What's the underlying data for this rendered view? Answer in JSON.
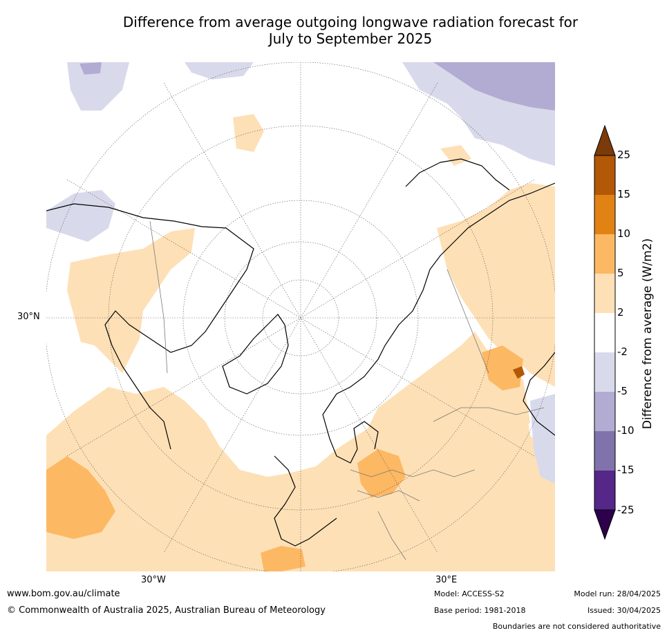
{
  "title": {
    "line1": "Difference from average outgoing longwave radiation forecast for",
    "line2": "July to September 2025"
  },
  "map": {
    "lon_labels": [
      "30°W",
      "30°E"
    ],
    "lat_labels": [
      "30°N"
    ]
  },
  "colorbar": {
    "label": "Difference from average (W/m2)",
    "ticks": [
      "25",
      "15",
      "10",
      "5",
      "2",
      "-2",
      "-5",
      "-10",
      "-15",
      "-25"
    ],
    "colors": {
      "extend_max": "#7b3a0a",
      "c15_25": "#b35806",
      "c10_15": "#e08214",
      "c5_10": "#fdb863",
      "c2_5": "#fee0b6",
      "c_neutral": "#ffffff",
      "c_m5_m2": "#d8daeb",
      "c_m10_m5": "#b2abd2",
      "c_m15_m10": "#8073ac",
      "c_m25_m15": "#542788",
      "extend_min": "#2d004b"
    }
  },
  "footer": {
    "website": "www.bom.gov.au/climate",
    "copyright": "© Commonwealth of Australia 2025, Australian Bureau of Meteorology",
    "model": "Model: ACCESS-S2",
    "base_period": "Base period: 1981-2018",
    "model_run": "Model run: 28/04/2025",
    "issued": "Issued: 30/04/2025",
    "disclaimer": "Boundaries are not considered authoritative"
  }
}
